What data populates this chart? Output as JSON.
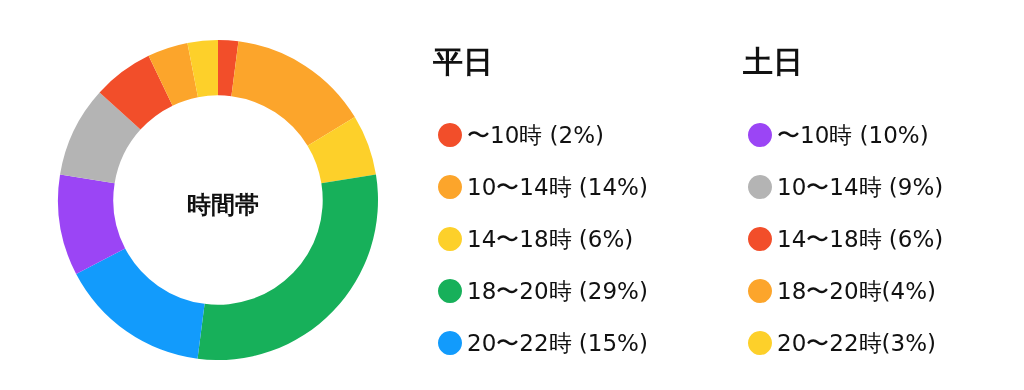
{
  "chart_data": {
    "type": "donut",
    "title": "時間帯",
    "categories": [
      "〜10時 (2%)",
      "10〜14時 (14%)",
      "14〜18時 (6%)",
      "18〜20時 (29%)",
      "20〜22時 (15%)",
      "〜10時 (10%)",
      "10〜14時 (9%)",
      "14〜18時 (6%)",
      "18〜20時(4%)",
      "20〜22時(3%)"
    ],
    "values": [
      2,
      14,
      6,
      29,
      15,
      10,
      9,
      6,
      4,
      3
    ],
    "colors": [
      "#f24e2a",
      "#fca52b",
      "#fdd02a",
      "#17b05a",
      "#129bfc",
      "#9b45f5",
      "#b4b4b4",
      "#f24e2a",
      "#fca52b",
      "#fdd02a"
    ],
    "annotations": [
      "平日",
      "土日"
    ],
    "legend": "right"
  }
}
